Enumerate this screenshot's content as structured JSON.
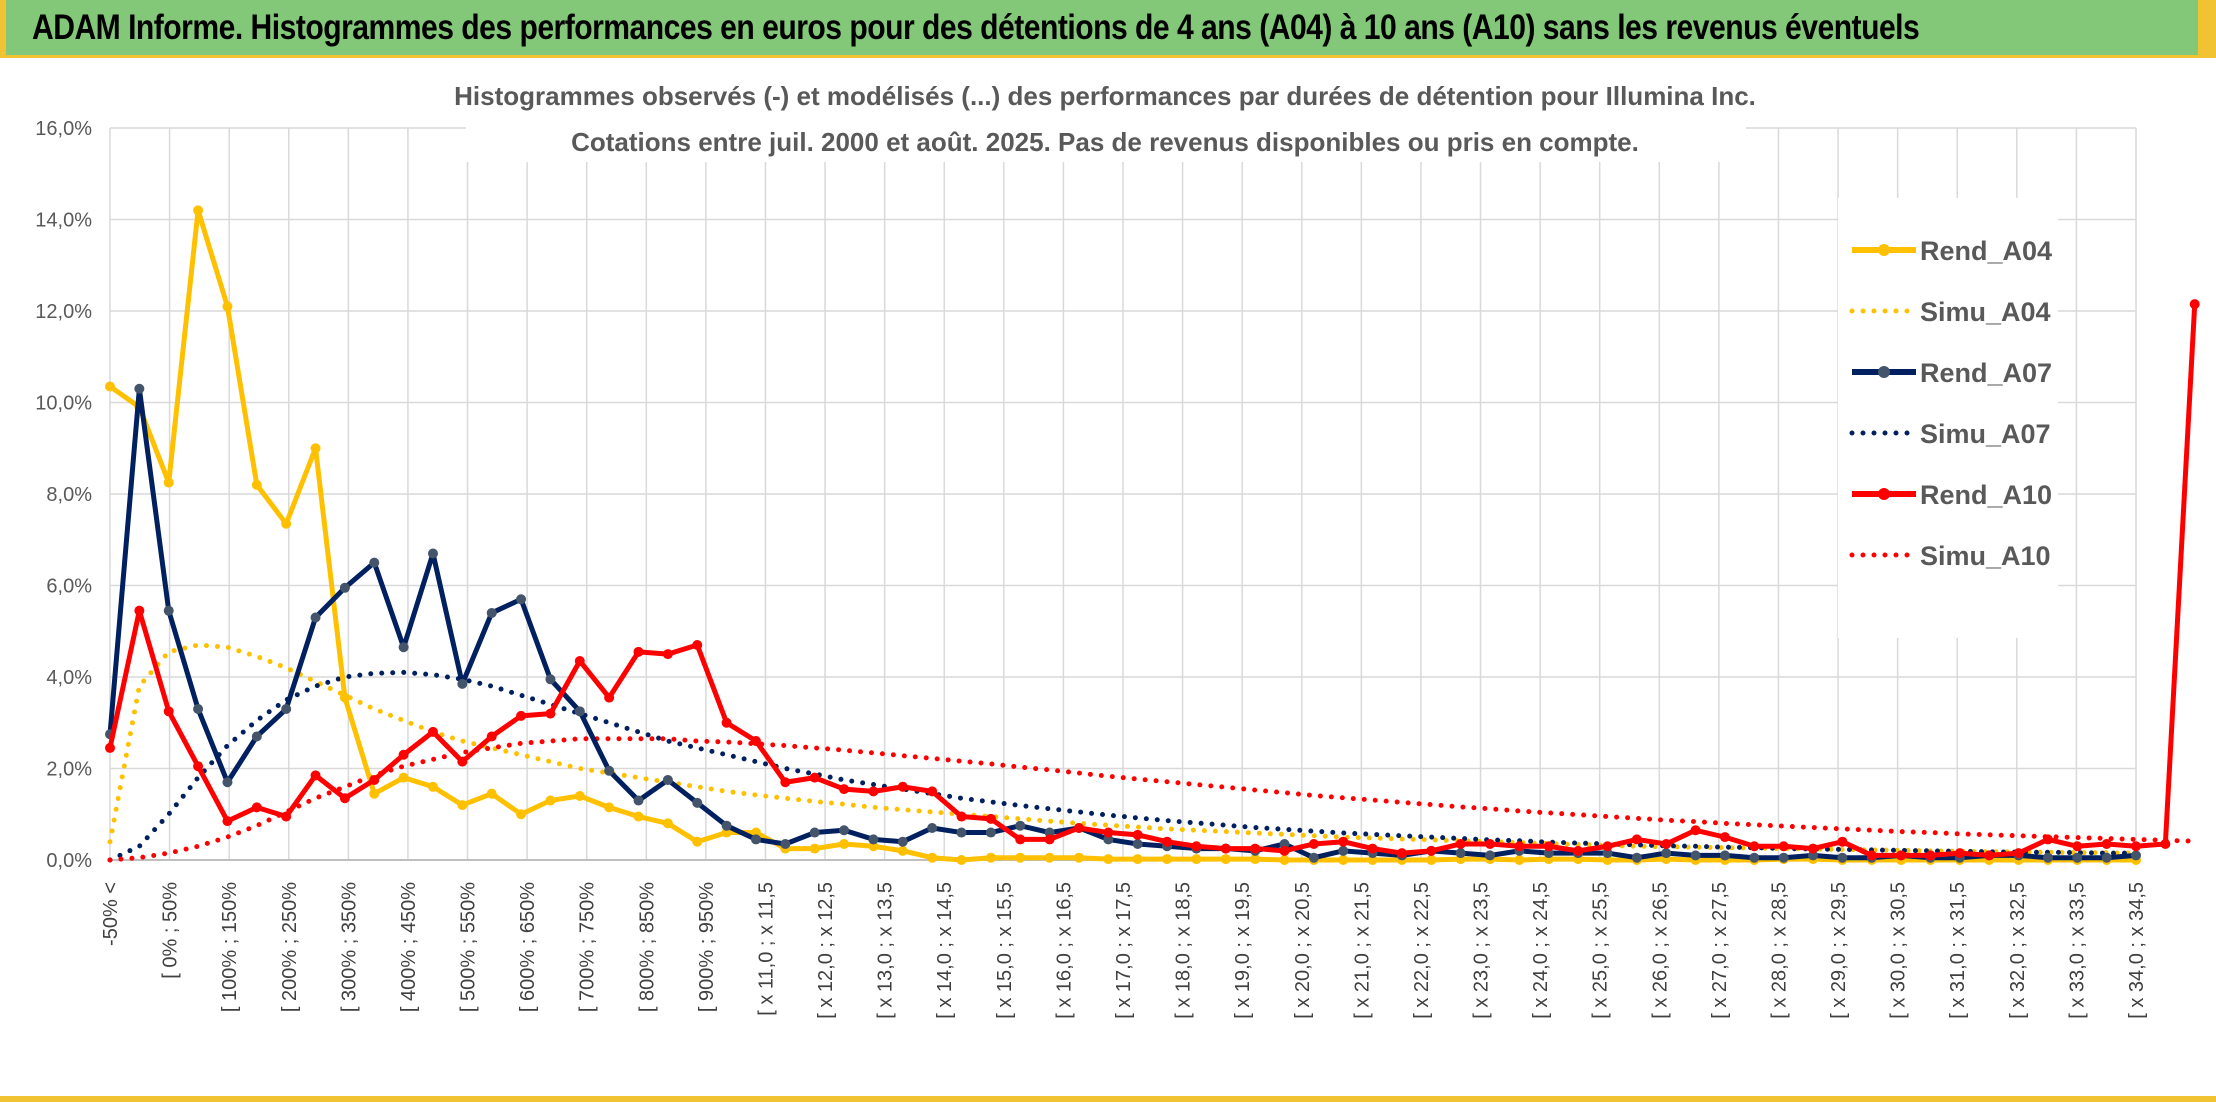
{
  "header": {
    "title": "ADAM Informe. Histogrammes des performances en euros pour des détentions de 4 ans (A04) à 10 ans (A10) sans les revenus éventuels"
  },
  "chart_data": {
    "type": "line",
    "title": "Histogrammes observés (-) et modélisés (...) des performances par durées de détention pour Illumina Inc.",
    "subtitle": "Cotations entre juil. 2000 et août. 2025. Pas de revenus disponibles ou pris en compte.",
    "ylim": [
      0,
      16
    ],
    "y_ticks": [
      "0,0%",
      "2,0%",
      "4,0%",
      "6,0%",
      "8,0%",
      "10,0%",
      "12,0%",
      "14,0%",
      "16,0%"
    ],
    "grid": true,
    "legend_position": "right",
    "x_tick_labels": [
      "-50% <",
      "[ 0% ; 50%",
      "[ 100% ; 150%",
      "[ 200% ; 250%",
      "[ 300% ; 350%",
      "[ 400% ; 450%",
      "[ 500% ; 550%",
      "[ 600% ; 650%",
      "[ 700% ; 750%",
      "[ 800% ; 850%",
      "[ 900% ; 950%",
      "[ x 11,0 ; x 11,5",
      "[ x 12,0 ; x 12,5",
      "[ x 13,0 ; x 13,5",
      "[ x 14,0 ; x 14,5",
      "[ x 15,0 ; x 15,5",
      "[ x 16,0 ; x 16,5",
      "[ x 17,0 ; x 17,5",
      "[ x 18,0 ; x 18,5",
      "[ x 19,0 ; x 19,5",
      "[ x 20,0 ; x 20,5",
      "[ x 21,0 ; x 21,5",
      "[ x 22,0 ; x 22,5",
      "[ x 23,0 ; x 23,5",
      "[ x 24,0 ; x 24,5",
      "[ x 25,0 ; x 25,5",
      "[ x 26,0 ; x 26,5",
      "[ x 27,0 ; x 27,5",
      "[ x 28,0 ; x 28,5",
      "[ x 29,0 ; x 29,5",
      "[ x 30,0 ; x 30,5",
      "[ x 31,0 ; x 31,5",
      "[ x 32,0 ; x 32,5",
      "[ x 33,0 ; x 33,5",
      "[ x 34,0 ; x 34,5"
    ],
    "series": [
      {
        "name": "Rend_A04",
        "style": "solid",
        "color": "#FFC000",
        "values": [
          10.35,
          9.9,
          8.25,
          14.2,
          12.1,
          8.2,
          7.35,
          9.0,
          3.55,
          1.45,
          1.8,
          1.6,
          1.2,
          1.45,
          1.0,
          1.3,
          1.4,
          1.15,
          0.95,
          0.8,
          0.4,
          0.6,
          0.6,
          0.25,
          0.25,
          0.35,
          0.3,
          0.2,
          0.05,
          0.0,
          0.05,
          0.05,
          0.05,
          0.05,
          0.02,
          0.02,
          0.02,
          0.02,
          0.02,
          0.02,
          0.0,
          0.0,
          0.0,
          0.0,
          0.0,
          0.0,
          0.02,
          0.02,
          0.0,
          0.02,
          0.02,
          0.0,
          0.0,
          0.02,
          0.0,
          0.0,
          0.0,
          0.02,
          0.02,
          0.0,
          0.0,
          0.0,
          0.0,
          0.0,
          0.0,
          0.0,
          0.0,
          0.0,
          0.0,
          0.0
        ]
      },
      {
        "name": "Simu_A04",
        "style": "dotted",
        "color": "#FFC000",
        "values": [
          0.4,
          3.8,
          4.55,
          4.7,
          4.65,
          4.45,
          4.2,
          3.9,
          3.6,
          3.3,
          3.05,
          2.8,
          2.6,
          2.45,
          2.3,
          2.15,
          2.0,
          1.9,
          1.8,
          1.7,
          1.6,
          1.5,
          1.42,
          1.35,
          1.28,
          1.22,
          1.15,
          1.1,
          1.05,
          1.0,
          0.95,
          0.9,
          0.85,
          0.8,
          0.76,
          0.72,
          0.68,
          0.65,
          0.62,
          0.59,
          0.56,
          0.53,
          0.5,
          0.48,
          0.46,
          0.44,
          0.42,
          0.4,
          0.38,
          0.36,
          0.34,
          0.32,
          0.3,
          0.29,
          0.28,
          0.27,
          0.26,
          0.25,
          0.24,
          0.23,
          0.22,
          0.21,
          0.2,
          0.19,
          0.18,
          0.18,
          0.17,
          0.16,
          0.16,
          0.15
        ]
      },
      {
        "name": "Rend_A07",
        "style": "solid",
        "color": "#002060",
        "values": [
          2.75,
          10.3,
          5.45,
          3.3,
          1.7,
          2.7,
          3.3,
          5.3,
          5.95,
          6.5,
          4.65,
          6.7,
          3.85,
          5.4,
          5.7,
          3.95,
          3.25,
          1.95,
          1.3,
          1.75,
          1.25,
          0.75,
          0.45,
          0.35,
          0.6,
          0.65,
          0.45,
          0.4,
          0.7,
          0.6,
          0.6,
          0.75,
          0.6,
          0.7,
          0.45,
          0.35,
          0.3,
          0.25,
          0.25,
          0.2,
          0.35,
          0.05,
          0.2,
          0.15,
          0.1,
          0.2,
          0.15,
          0.1,
          0.2,
          0.15,
          0.15,
          0.15,
          0.05,
          0.15,
          0.1,
          0.1,
          0.05,
          0.05,
          0.1,
          0.05,
          0.05,
          0.1,
          0.05,
          0.05,
          0.1,
          0.1,
          0.05,
          0.05,
          0.05,
          0.1
        ]
      },
      {
        "name": "Simu_A07",
        "style": "dotted",
        "color": "#002060",
        "values": [
          0.0,
          0.3,
          1.0,
          1.8,
          2.5,
          3.05,
          3.5,
          3.8,
          4.0,
          4.08,
          4.1,
          4.05,
          3.95,
          3.8,
          3.6,
          3.4,
          3.2,
          3.0,
          2.8,
          2.6,
          2.45,
          2.3,
          2.15,
          2.0,
          1.88,
          1.75,
          1.65,
          1.55,
          1.45,
          1.35,
          1.27,
          1.19,
          1.12,
          1.05,
          0.98,
          0.92,
          0.86,
          0.81,
          0.76,
          0.71,
          0.67,
          0.63,
          0.59,
          0.56,
          0.53,
          0.5,
          0.47,
          0.44,
          0.42,
          0.39,
          0.37,
          0.35,
          0.33,
          0.31,
          0.3,
          0.28,
          0.27,
          0.25,
          0.24,
          0.23,
          0.22,
          0.21,
          0.2,
          0.19,
          0.18,
          0.17,
          0.17,
          0.16,
          0.15,
          0.15
        ]
      },
      {
        "name": "Rend_A10",
        "style": "solid",
        "color": "#FF0000",
        "values": [
          2.45,
          5.45,
          3.25,
          2.05,
          0.85,
          1.15,
          0.95,
          1.85,
          1.35,
          1.75,
          2.3,
          2.8,
          2.15,
          2.7,
          3.15,
          3.2,
          4.35,
          3.55,
          4.55,
          4.5,
          4.7,
          3.0,
          2.6,
          1.7,
          1.8,
          1.55,
          1.5,
          1.6,
          1.5,
          0.95,
          0.9,
          0.45,
          0.45,
          0.7,
          0.6,
          0.55,
          0.4,
          0.3,
          0.25,
          0.25,
          0.2,
          0.35,
          0.4,
          0.25,
          0.15,
          0.2,
          0.35,
          0.35,
          0.3,
          0.3,
          0.2,
          0.3,
          0.45,
          0.35,
          0.65,
          0.5,
          0.3,
          0.3,
          0.25,
          0.4,
          0.1,
          0.1,
          0.1,
          0.15,
          0.1,
          0.15,
          0.45,
          0.3,
          0.35,
          0.3,
          0.35,
          12.15
        ]
      },
      {
        "name": "Simu_A10",
        "style": "dotted",
        "color": "#FF0000",
        "values": [
          0.0,
          0.05,
          0.15,
          0.3,
          0.5,
          0.75,
          1.05,
          1.35,
          1.6,
          1.85,
          2.05,
          2.2,
          2.35,
          2.45,
          2.55,
          2.6,
          2.65,
          2.65,
          2.65,
          2.65,
          2.6,
          2.58,
          2.54,
          2.5,
          2.45,
          2.4,
          2.34,
          2.28,
          2.22,
          2.16,
          2.1,
          2.03,
          1.97,
          1.9,
          1.83,
          1.77,
          1.71,
          1.65,
          1.59,
          1.53,
          1.47,
          1.41,
          1.36,
          1.31,
          1.26,
          1.21,
          1.16,
          1.12,
          1.07,
          1.03,
          0.99,
          0.95,
          0.91,
          0.87,
          0.84,
          0.8,
          0.77,
          0.74,
          0.71,
          0.68,
          0.65,
          0.62,
          0.6,
          0.57,
          0.55,
          0.53,
          0.51,
          0.49,
          0.47,
          0.45,
          0.43,
          0.41
        ]
      }
    ]
  }
}
